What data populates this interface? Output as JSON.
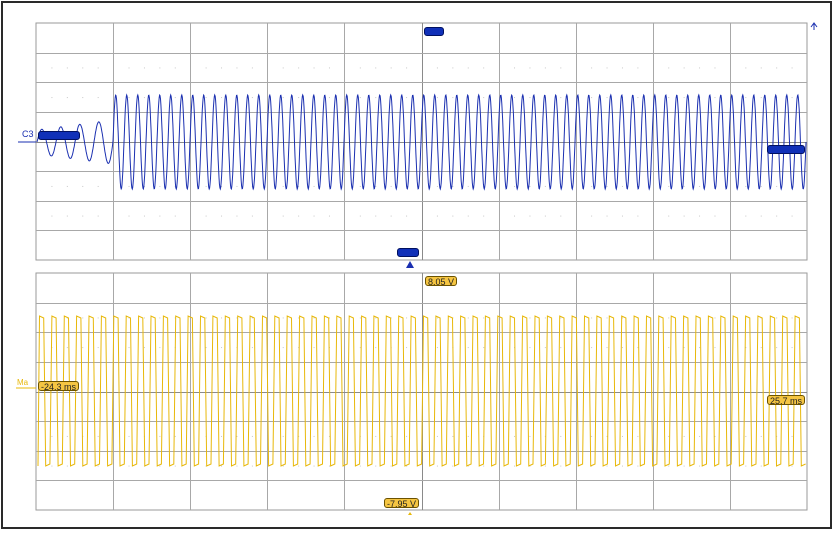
{
  "channels": {
    "top": {
      "label": "C3",
      "color": "#1a2fb0",
      "signal": "chirp",
      "quiet_cycles": 4,
      "cycles": 67
    },
    "bottom": {
      "label": "Ma",
      "color": "#e8b80a",
      "signal": "square",
      "cycles": 62
    }
  },
  "readouts": {
    "upper_voltage": "8.05 V",
    "lower_voltage": "-7.95 V",
    "cursor_left_time": "-24.3 ms",
    "cursor_right_time": "25.7 ms"
  },
  "colors": {
    "grid_line": "#a8a8a8",
    "grid_dot": "#c8c8c8",
    "tag_fill": "#f5c542",
    "blue_marker": "#1030b8",
    "frame": "#2a2a2a"
  },
  "icons": {
    "scale_arrow": "arrow-up-icon",
    "trigger_marker": "triangle-up-icon"
  }
}
